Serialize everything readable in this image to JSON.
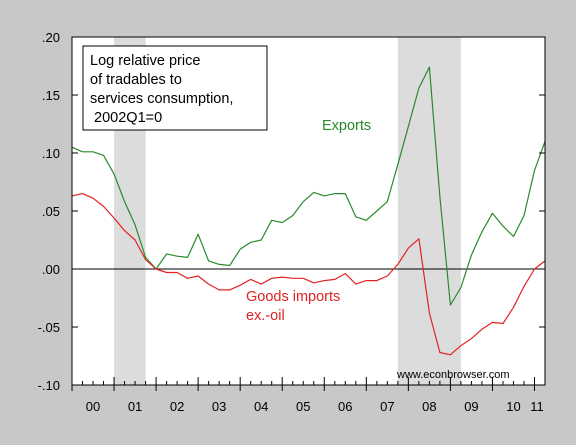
{
  "chart_data": {
    "type": "line",
    "title": "",
    "xlabel": "",
    "ylabel": "",
    "x_tick_labels": [
      "00",
      "01",
      "02",
      "03",
      "04",
      "05",
      "06",
      "07",
      "08",
      "09",
      "10",
      "11"
    ],
    "xlim": [
      2000.0,
      2011.25
    ],
    "ylim": [
      -0.1,
      0.2
    ],
    "y_ticks": [
      0.2,
      0.15,
      0.1,
      0.05,
      0.0,
      -0.05,
      -0.1
    ],
    "y_tick_labels": [
      ".20",
      ".15",
      ".10",
      ".05",
      ".00",
      "-.05",
      "-.10"
    ],
    "recession_bands": [
      [
        2001.0,
        2001.75
      ],
      [
        2007.75,
        2009.25
      ]
    ],
    "zero_line": true,
    "grid": false,
    "x": [
      2000.0,
      2000.25,
      2000.5,
      2000.75,
      2001.0,
      2001.25,
      2001.5,
      2001.75,
      2002.0,
      2002.25,
      2002.5,
      2002.75,
      2003.0,
      2003.25,
      2003.5,
      2003.75,
      2004.0,
      2004.25,
      2004.5,
      2004.75,
      2005.0,
      2005.25,
      2005.5,
      2005.75,
      2006.0,
      2006.25,
      2006.5,
      2006.75,
      2007.0,
      2007.25,
      2007.5,
      2007.75,
      2008.0,
      2008.25,
      2008.5,
      2008.75,
      2009.0,
      2009.25,
      2009.5,
      2009.75,
      2010.0,
      2010.25,
      2010.5,
      2010.75,
      2011.0,
      2011.25
    ],
    "series": [
      {
        "name": "Exports",
        "color": "#2a8a2a",
        "label_position": "upper-right",
        "values": [
          0.105,
          0.101,
          0.101,
          0.098,
          0.082,
          0.058,
          0.038,
          0.01,
          0.0,
          0.013,
          0.011,
          0.01,
          0.03,
          0.007,
          0.004,
          0.003,
          0.017,
          0.023,
          0.025,
          0.042,
          0.04,
          0.046,
          0.058,
          0.066,
          0.063,
          0.065,
          0.065,
          0.045,
          0.042,
          0.05,
          0.058,
          0.09,
          0.123,
          0.156,
          0.174,
          0.062,
          -0.031,
          -0.016,
          0.012,
          0.032,
          0.048,
          0.037,
          0.028,
          0.046,
          0.085,
          0.11
        ]
      },
      {
        "name": "Goods imports ex.-oil",
        "color": "#e22222",
        "label_position": "lower-middle",
        "values": [
          0.063,
          0.065,
          0.061,
          0.054,
          0.044,
          0.033,
          0.025,
          0.008,
          0.0,
          -0.003,
          -0.003,
          -0.008,
          -0.006,
          -0.013,
          -0.018,
          -0.018,
          -0.014,
          -0.009,
          -0.013,
          -0.008,
          -0.007,
          -0.008,
          -0.008,
          -0.012,
          -0.01,
          -0.009,
          -0.004,
          -0.013,
          -0.01,
          -0.01,
          -0.006,
          0.004,
          0.018,
          0.026,
          -0.038,
          -0.072,
          -0.074,
          -0.066,
          -0.06,
          -0.052,
          -0.046,
          -0.047,
          -0.033,
          -0.015,
          0.0,
          0.007
        ]
      }
    ],
    "legend_box": {
      "lines": [
        "Log relative price",
        "of tradables to",
        "services consumption,",
        " 2002Q1=0"
      ],
      "position": "top-left"
    },
    "annotations": {
      "exports_label": "Exports",
      "imports_label_line1": "Goods imports",
      "imports_label_line2": "ex.-oil",
      "watermark": "www.econbrowser.com"
    }
  }
}
